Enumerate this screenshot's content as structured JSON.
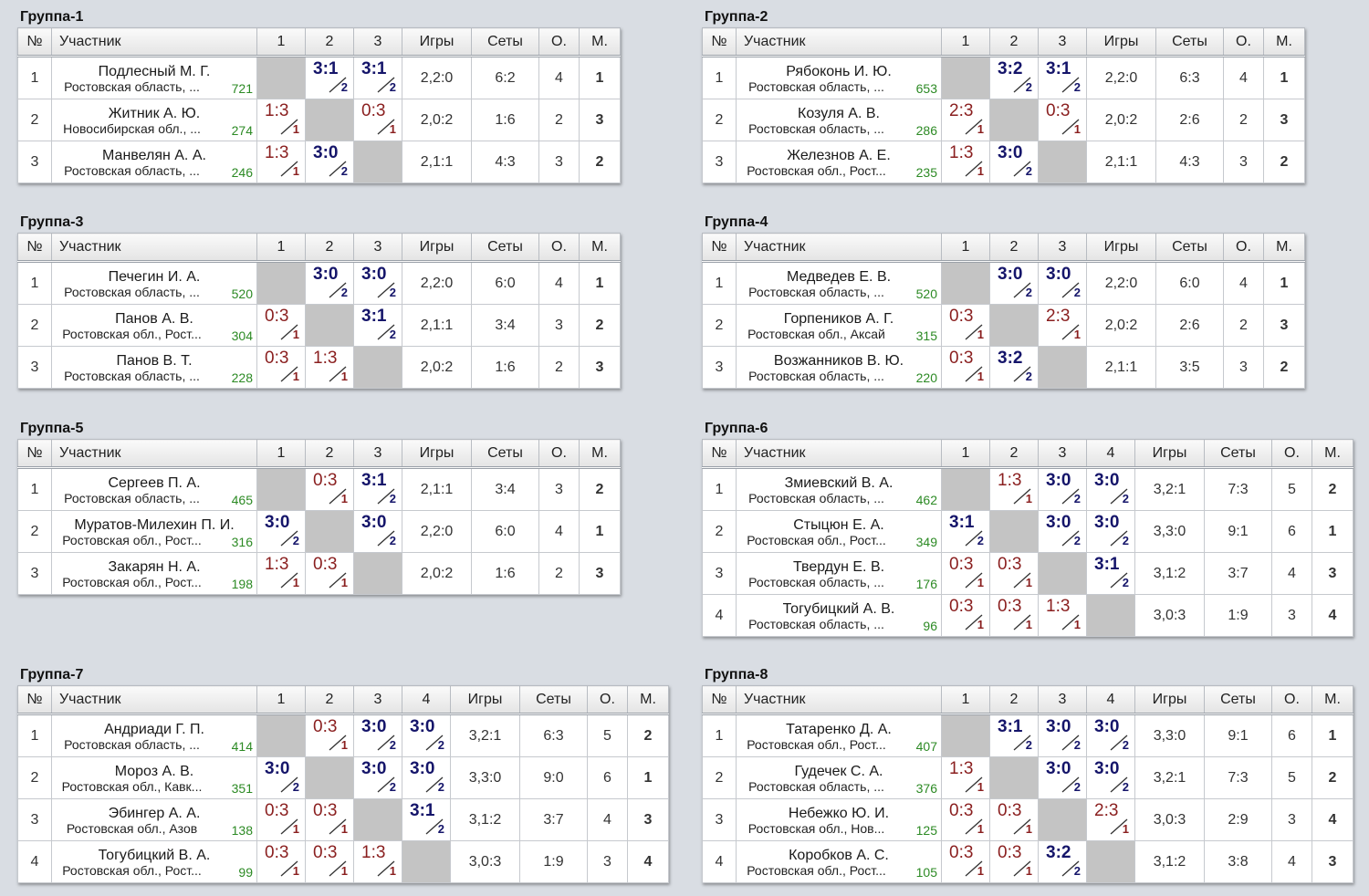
{
  "headers": {
    "no": "№",
    "name": "Участник",
    "games": "Игры",
    "sets": "Сеты",
    "points": "О.",
    "place": "М."
  },
  "groups": [
    {
      "title": "Группа-1",
      "players": [
        {
          "no": "1",
          "name": "Подлесный М. Г.",
          "region": "Ростовская область, ...",
          "rating": "721",
          "results": [
            null,
            {
              "s": "3:1",
              "p": "2",
              "w": true
            },
            {
              "s": "3:1",
              "p": "2",
              "w": true
            }
          ],
          "games": "2,2:0",
          "sets": "6:2",
          "points": "4",
          "place": "1"
        },
        {
          "no": "2",
          "name": "Житник А. Ю.",
          "region": "Новосибирская обл., ...",
          "rating": "274",
          "results": [
            {
              "s": "1:3",
              "p": "1",
              "w": false
            },
            null,
            {
              "s": "0:3",
              "p": "1",
              "w": false
            }
          ],
          "games": "2,0:2",
          "sets": "1:6",
          "points": "2",
          "place": "3"
        },
        {
          "no": "3",
          "name": "Манвелян А. А.",
          "region": "Ростовская область, ...",
          "rating": "246",
          "results": [
            {
              "s": "1:3",
              "p": "1",
              "w": false
            },
            {
              "s": "3:0",
              "p": "2",
              "w": true
            },
            null
          ],
          "games": "2,1:1",
          "sets": "4:3",
          "points": "3",
          "place": "2"
        }
      ]
    },
    {
      "title": "Группа-2",
      "players": [
        {
          "no": "1",
          "name": "Рябоконь И. Ю.",
          "region": "Ростовская область, ...",
          "rating": "653",
          "results": [
            null,
            {
              "s": "3:2",
              "p": "2",
              "w": true
            },
            {
              "s": "3:1",
              "p": "2",
              "w": true
            }
          ],
          "games": "2,2:0",
          "sets": "6:3",
          "points": "4",
          "place": "1"
        },
        {
          "no": "2",
          "name": "Козуля А. В.",
          "region": "Ростовская область, ...",
          "rating": "286",
          "results": [
            {
              "s": "2:3",
              "p": "1",
              "w": false
            },
            null,
            {
              "s": "0:3",
              "p": "1",
              "w": false
            }
          ],
          "games": "2,0:2",
          "sets": "2:6",
          "points": "2",
          "place": "3"
        },
        {
          "no": "3",
          "name": "Железнов А. Е.",
          "region": "Ростовская обл., Рост...",
          "rating": "235",
          "results": [
            {
              "s": "1:3",
              "p": "1",
              "w": false
            },
            {
              "s": "3:0",
              "p": "2",
              "w": true
            },
            null
          ],
          "games": "2,1:1",
          "sets": "4:3",
          "points": "3",
          "place": "2"
        }
      ]
    },
    {
      "title": "Группа-3",
      "players": [
        {
          "no": "1",
          "name": "Печегин И. А.",
          "region": "Ростовская область, ...",
          "rating": "520",
          "results": [
            null,
            {
              "s": "3:0",
              "p": "2",
              "w": true
            },
            {
              "s": "3:0",
              "p": "2",
              "w": true
            }
          ],
          "games": "2,2:0",
          "sets": "6:0",
          "points": "4",
          "place": "1"
        },
        {
          "no": "2",
          "name": "Панов А. В.",
          "region": "Ростовская обл., Рост...",
          "rating": "304",
          "results": [
            {
              "s": "0:3",
              "p": "1",
              "w": false
            },
            null,
            {
              "s": "3:1",
              "p": "2",
              "w": true
            }
          ],
          "games": "2,1:1",
          "sets": "3:4",
          "points": "3",
          "place": "2"
        },
        {
          "no": "3",
          "name": "Панов В. Т.",
          "region": "Ростовская область, ...",
          "rating": "228",
          "results": [
            {
              "s": "0:3",
              "p": "1",
              "w": false
            },
            {
              "s": "1:3",
              "p": "1",
              "w": false
            },
            null
          ],
          "games": "2,0:2",
          "sets": "1:6",
          "points": "2",
          "place": "3"
        }
      ]
    },
    {
      "title": "Группа-4",
      "players": [
        {
          "no": "1",
          "name": "Медведев Е. В.",
          "region": "Ростовская область, ...",
          "rating": "520",
          "results": [
            null,
            {
              "s": "3:0",
              "p": "2",
              "w": true
            },
            {
              "s": "3:0",
              "p": "2",
              "w": true
            }
          ],
          "games": "2,2:0",
          "sets": "6:0",
          "points": "4",
          "place": "1"
        },
        {
          "no": "2",
          "name": "Горпеников А. Г.",
          "region": "Ростовская обл., Аксай",
          "rating": "315",
          "results": [
            {
              "s": "0:3",
              "p": "1",
              "w": false
            },
            null,
            {
              "s": "2:3",
              "p": "1",
              "w": false
            }
          ],
          "games": "2,0:2",
          "sets": "2:6",
          "points": "2",
          "place": "3"
        },
        {
          "no": "3",
          "name": "Возжанников В. Ю.",
          "region": "Ростовская область, ...",
          "rating": "220",
          "results": [
            {
              "s": "0:3",
              "p": "1",
              "w": false
            },
            {
              "s": "3:2",
              "p": "2",
              "w": true
            },
            null
          ],
          "games": "2,1:1",
          "sets": "3:5",
          "points": "3",
          "place": "2"
        }
      ]
    },
    {
      "title": "Группа-5",
      "players": [
        {
          "no": "1",
          "name": "Сергеев П. А.",
          "region": "Ростовская область, ...",
          "rating": "465",
          "results": [
            null,
            {
              "s": "0:3",
              "p": "1",
              "w": false
            },
            {
              "s": "3:1",
              "p": "2",
              "w": true
            }
          ],
          "games": "2,1:1",
          "sets": "3:4",
          "points": "3",
          "place": "2"
        },
        {
          "no": "2",
          "name": "Муратов-Милехин П. И.",
          "region": "Ростовская обл., Рост...",
          "rating": "316",
          "results": [
            {
              "s": "3:0",
              "p": "2",
              "w": true
            },
            null,
            {
              "s": "3:0",
              "p": "2",
              "w": true
            }
          ],
          "games": "2,2:0",
          "sets": "6:0",
          "points": "4",
          "place": "1"
        },
        {
          "no": "3",
          "name": "Закарян Н. А.",
          "region": "Ростовская обл., Рост...",
          "rating": "198",
          "results": [
            {
              "s": "1:3",
              "p": "1",
              "w": false
            },
            {
              "s": "0:3",
              "p": "1",
              "w": false
            },
            null
          ],
          "games": "2,0:2",
          "sets": "1:6",
          "points": "2",
          "place": "3"
        }
      ]
    },
    {
      "title": "Группа-6",
      "players": [
        {
          "no": "1",
          "name": "Змиевский В. А.",
          "region": "Ростовская область, ...",
          "rating": "462",
          "results": [
            null,
            {
              "s": "1:3",
              "p": "1",
              "w": false
            },
            {
              "s": "3:0",
              "p": "2",
              "w": true
            },
            {
              "s": "3:0",
              "p": "2",
              "w": true
            }
          ],
          "games": "3,2:1",
          "sets": "7:3",
          "points": "5",
          "place": "2"
        },
        {
          "no": "2",
          "name": "Стыцюн Е. А.",
          "region": "Ростовская обл., Рост...",
          "rating": "349",
          "results": [
            {
              "s": "3:1",
              "p": "2",
              "w": true
            },
            null,
            {
              "s": "3:0",
              "p": "2",
              "w": true
            },
            {
              "s": "3:0",
              "p": "2",
              "w": true
            }
          ],
          "games": "3,3:0",
          "sets": "9:1",
          "points": "6",
          "place": "1"
        },
        {
          "no": "3",
          "name": "Твердун Е. В.",
          "region": "Ростовская область, ...",
          "rating": "176",
          "results": [
            {
              "s": "0:3",
              "p": "1",
              "w": false
            },
            {
              "s": "0:3",
              "p": "1",
              "w": false
            },
            null,
            {
              "s": "3:1",
              "p": "2",
              "w": true
            }
          ],
          "games": "3,1:2",
          "sets": "3:7",
          "points": "4",
          "place": "3"
        },
        {
          "no": "4",
          "name": "Тогубицкий А. В.",
          "region": "Ростовская область, ...",
          "rating": "96",
          "results": [
            {
              "s": "0:3",
              "p": "1",
              "w": false
            },
            {
              "s": "0:3",
              "p": "1",
              "w": false
            },
            {
              "s": "1:3",
              "p": "1",
              "w": false
            },
            null
          ],
          "games": "3,0:3",
          "sets": "1:9",
          "points": "3",
          "place": "4"
        }
      ]
    },
    {
      "title": "Группа-7",
      "players": [
        {
          "no": "1",
          "name": "Андриади Г. П.",
          "region": "Ростовская область, ...",
          "rating": "414",
          "results": [
            null,
            {
              "s": "0:3",
              "p": "1",
              "w": false
            },
            {
              "s": "3:0",
              "p": "2",
              "w": true
            },
            {
              "s": "3:0",
              "p": "2",
              "w": true
            }
          ],
          "games": "3,2:1",
          "sets": "6:3",
          "points": "5",
          "place": "2"
        },
        {
          "no": "2",
          "name": "Мороз А. В.",
          "region": "Ростовская обл., Кавк...",
          "rating": "351",
          "results": [
            {
              "s": "3:0",
              "p": "2",
              "w": true
            },
            null,
            {
              "s": "3:0",
              "p": "2",
              "w": true
            },
            {
              "s": "3:0",
              "p": "2",
              "w": true
            }
          ],
          "games": "3,3:0",
          "sets": "9:0",
          "points": "6",
          "place": "1"
        },
        {
          "no": "3",
          "name": "Эбингер А. А.",
          "region": "Ростовская обл., Азов",
          "rating": "138",
          "results": [
            {
              "s": "0:3",
              "p": "1",
              "w": false
            },
            {
              "s": "0:3",
              "p": "1",
              "w": false
            },
            null,
            {
              "s": "3:1",
              "p": "2",
              "w": true
            }
          ],
          "games": "3,1:2",
          "sets": "3:7",
          "points": "4",
          "place": "3"
        },
        {
          "no": "4",
          "name": "Тогубицкий В. А.",
          "region": "Ростовская обл., Рост...",
          "rating": "99",
          "results": [
            {
              "s": "0:3",
              "p": "1",
              "w": false
            },
            {
              "s": "0:3",
              "p": "1",
              "w": false
            },
            {
              "s": "1:3",
              "p": "1",
              "w": false
            },
            null
          ],
          "games": "3,0:3",
          "sets": "1:9",
          "points": "3",
          "place": "4"
        }
      ]
    },
    {
      "title": "Группа-8",
      "players": [
        {
          "no": "1",
          "name": "Татаренко Д. А.",
          "region": "Ростовская обл., Рост...",
          "rating": "407",
          "results": [
            null,
            {
              "s": "3:1",
              "p": "2",
              "w": true
            },
            {
              "s": "3:0",
              "p": "2",
              "w": true
            },
            {
              "s": "3:0",
              "p": "2",
              "w": true
            }
          ],
          "games": "3,3:0",
          "sets": "9:1",
          "points": "6",
          "place": "1"
        },
        {
          "no": "2",
          "name": "Гудечек С. А.",
          "region": "Ростовская область, ...",
          "rating": "376",
          "results": [
            {
              "s": "1:3",
              "p": "1",
              "w": false
            },
            null,
            {
              "s": "3:0",
              "p": "2",
              "w": true
            },
            {
              "s": "3:0",
              "p": "2",
              "w": true
            }
          ],
          "games": "3,2:1",
          "sets": "7:3",
          "points": "5",
          "place": "2"
        },
        {
          "no": "3",
          "name": "Небежко Ю. И.",
          "region": "Ростовская обл., Нов...",
          "rating": "125",
          "results": [
            {
              "s": "0:3",
              "p": "1",
              "w": false
            },
            {
              "s": "0:3",
              "p": "1",
              "w": false
            },
            null,
            {
              "s": "2:3",
              "p": "1",
              "w": false
            }
          ],
          "games": "3,0:3",
          "sets": "2:9",
          "points": "3",
          "place": "4"
        },
        {
          "no": "4",
          "name": "Коробков А. С.",
          "region": "Ростовская обл., Рост...",
          "rating": "105",
          "results": [
            {
              "s": "0:3",
              "p": "1",
              "w": false
            },
            {
              "s": "0:3",
              "p": "1",
              "w": false
            },
            {
              "s": "3:2",
              "p": "2",
              "w": true
            },
            null
          ],
          "games": "3,1:2",
          "sets": "3:8",
          "points": "4",
          "place": "3"
        }
      ]
    }
  ]
}
